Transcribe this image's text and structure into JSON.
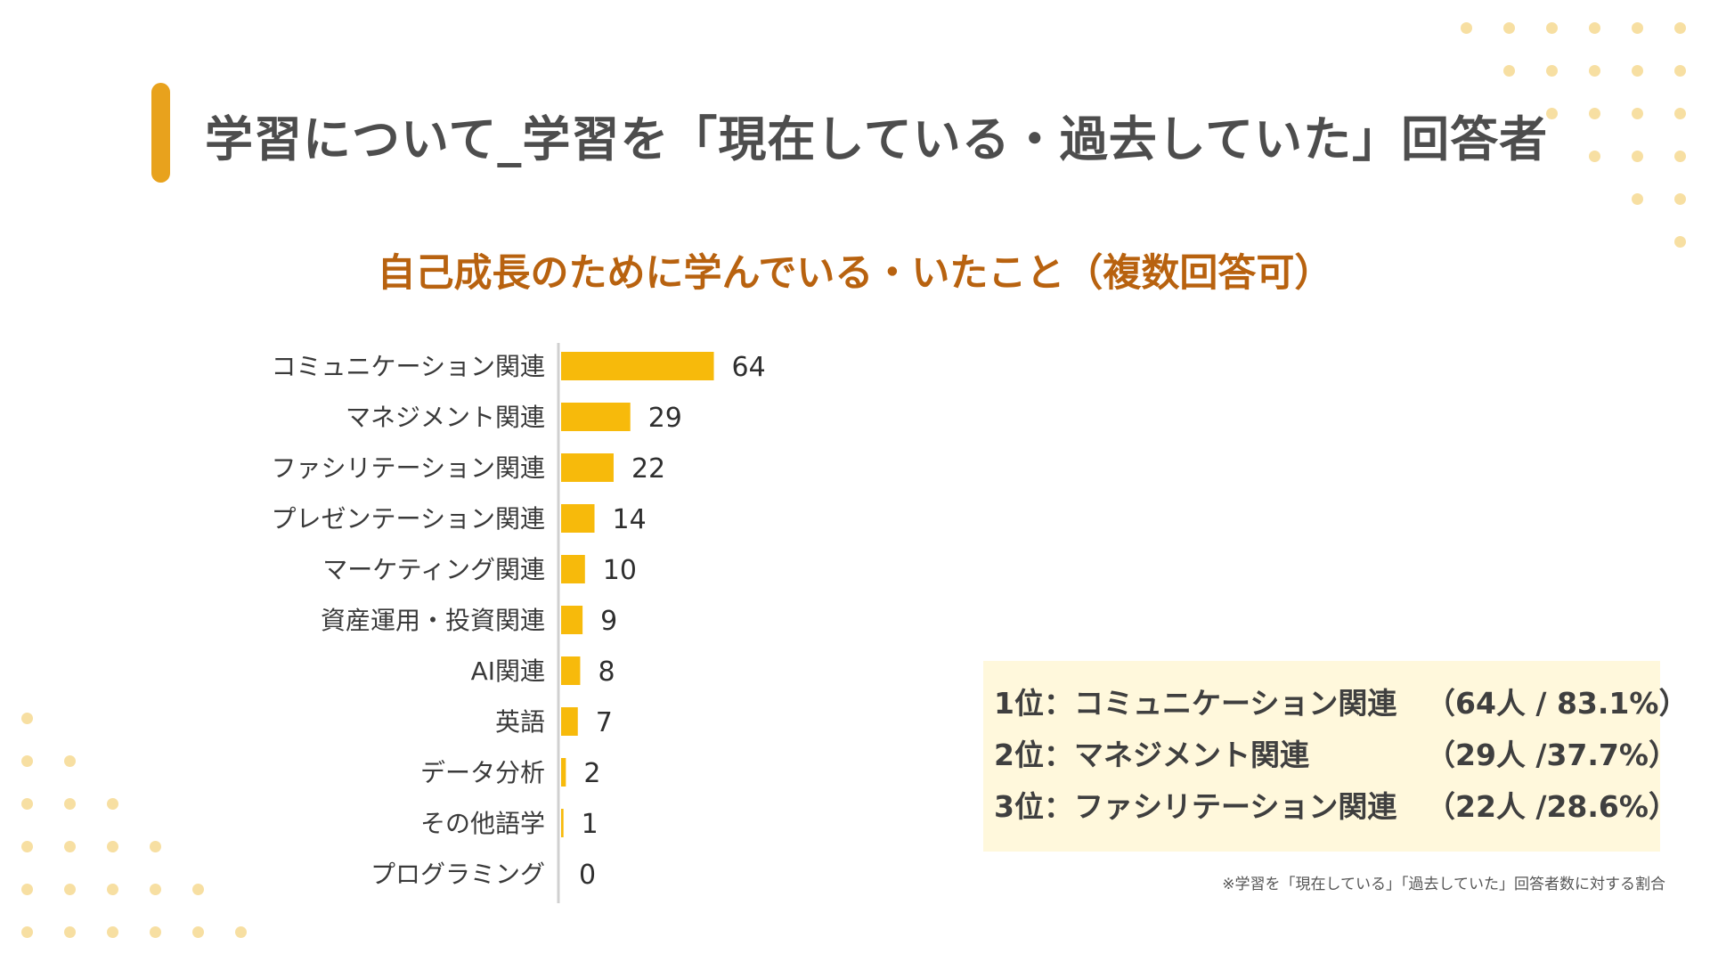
{
  "header": {
    "title": "学習について_学習を「現在している・過去していた」回答者"
  },
  "chart_data": {
    "type": "bar",
    "orientation": "horizontal",
    "title": "自己成長のために学んでいる・いたこと（複数回答可）",
    "categories": [
      "コミュニケーション関連",
      "マネジメント関連",
      "ファシリテーション関連",
      "プレゼンテーション関連",
      "マーケティング関連",
      "資産運用・投資関連",
      "AI関連",
      "英語",
      "データ分析",
      "その他語学",
      "プログラミング"
    ],
    "values": [
      64,
      29,
      22,
      14,
      10,
      9,
      8,
      7,
      2,
      1,
      0
    ],
    "bar_color": "#F7BA0B",
    "grid": false
  },
  "summary": {
    "rows": [
      {
        "rank": "1位：",
        "item": "コミュニケーション関連",
        "stat": "（64人 / 83.1%）"
      },
      {
        "rank": "2位：",
        "item": "マネジメント関連",
        "stat": "（29人 /37.7%）"
      },
      {
        "rank": "3位：",
        "item": "ファシリテーション関連",
        "stat": "（22人 /28.6%）"
      }
    ]
  },
  "footnote": "※学習を「現在している」「過去していた」回答者数に対する割合",
  "colors": {
    "accent": "#E8A21D",
    "chart_title": "#B8620F",
    "bar": "#F7BA0B",
    "summary_bg": "#FFF8DC",
    "dots": "#F7DFA2"
  }
}
